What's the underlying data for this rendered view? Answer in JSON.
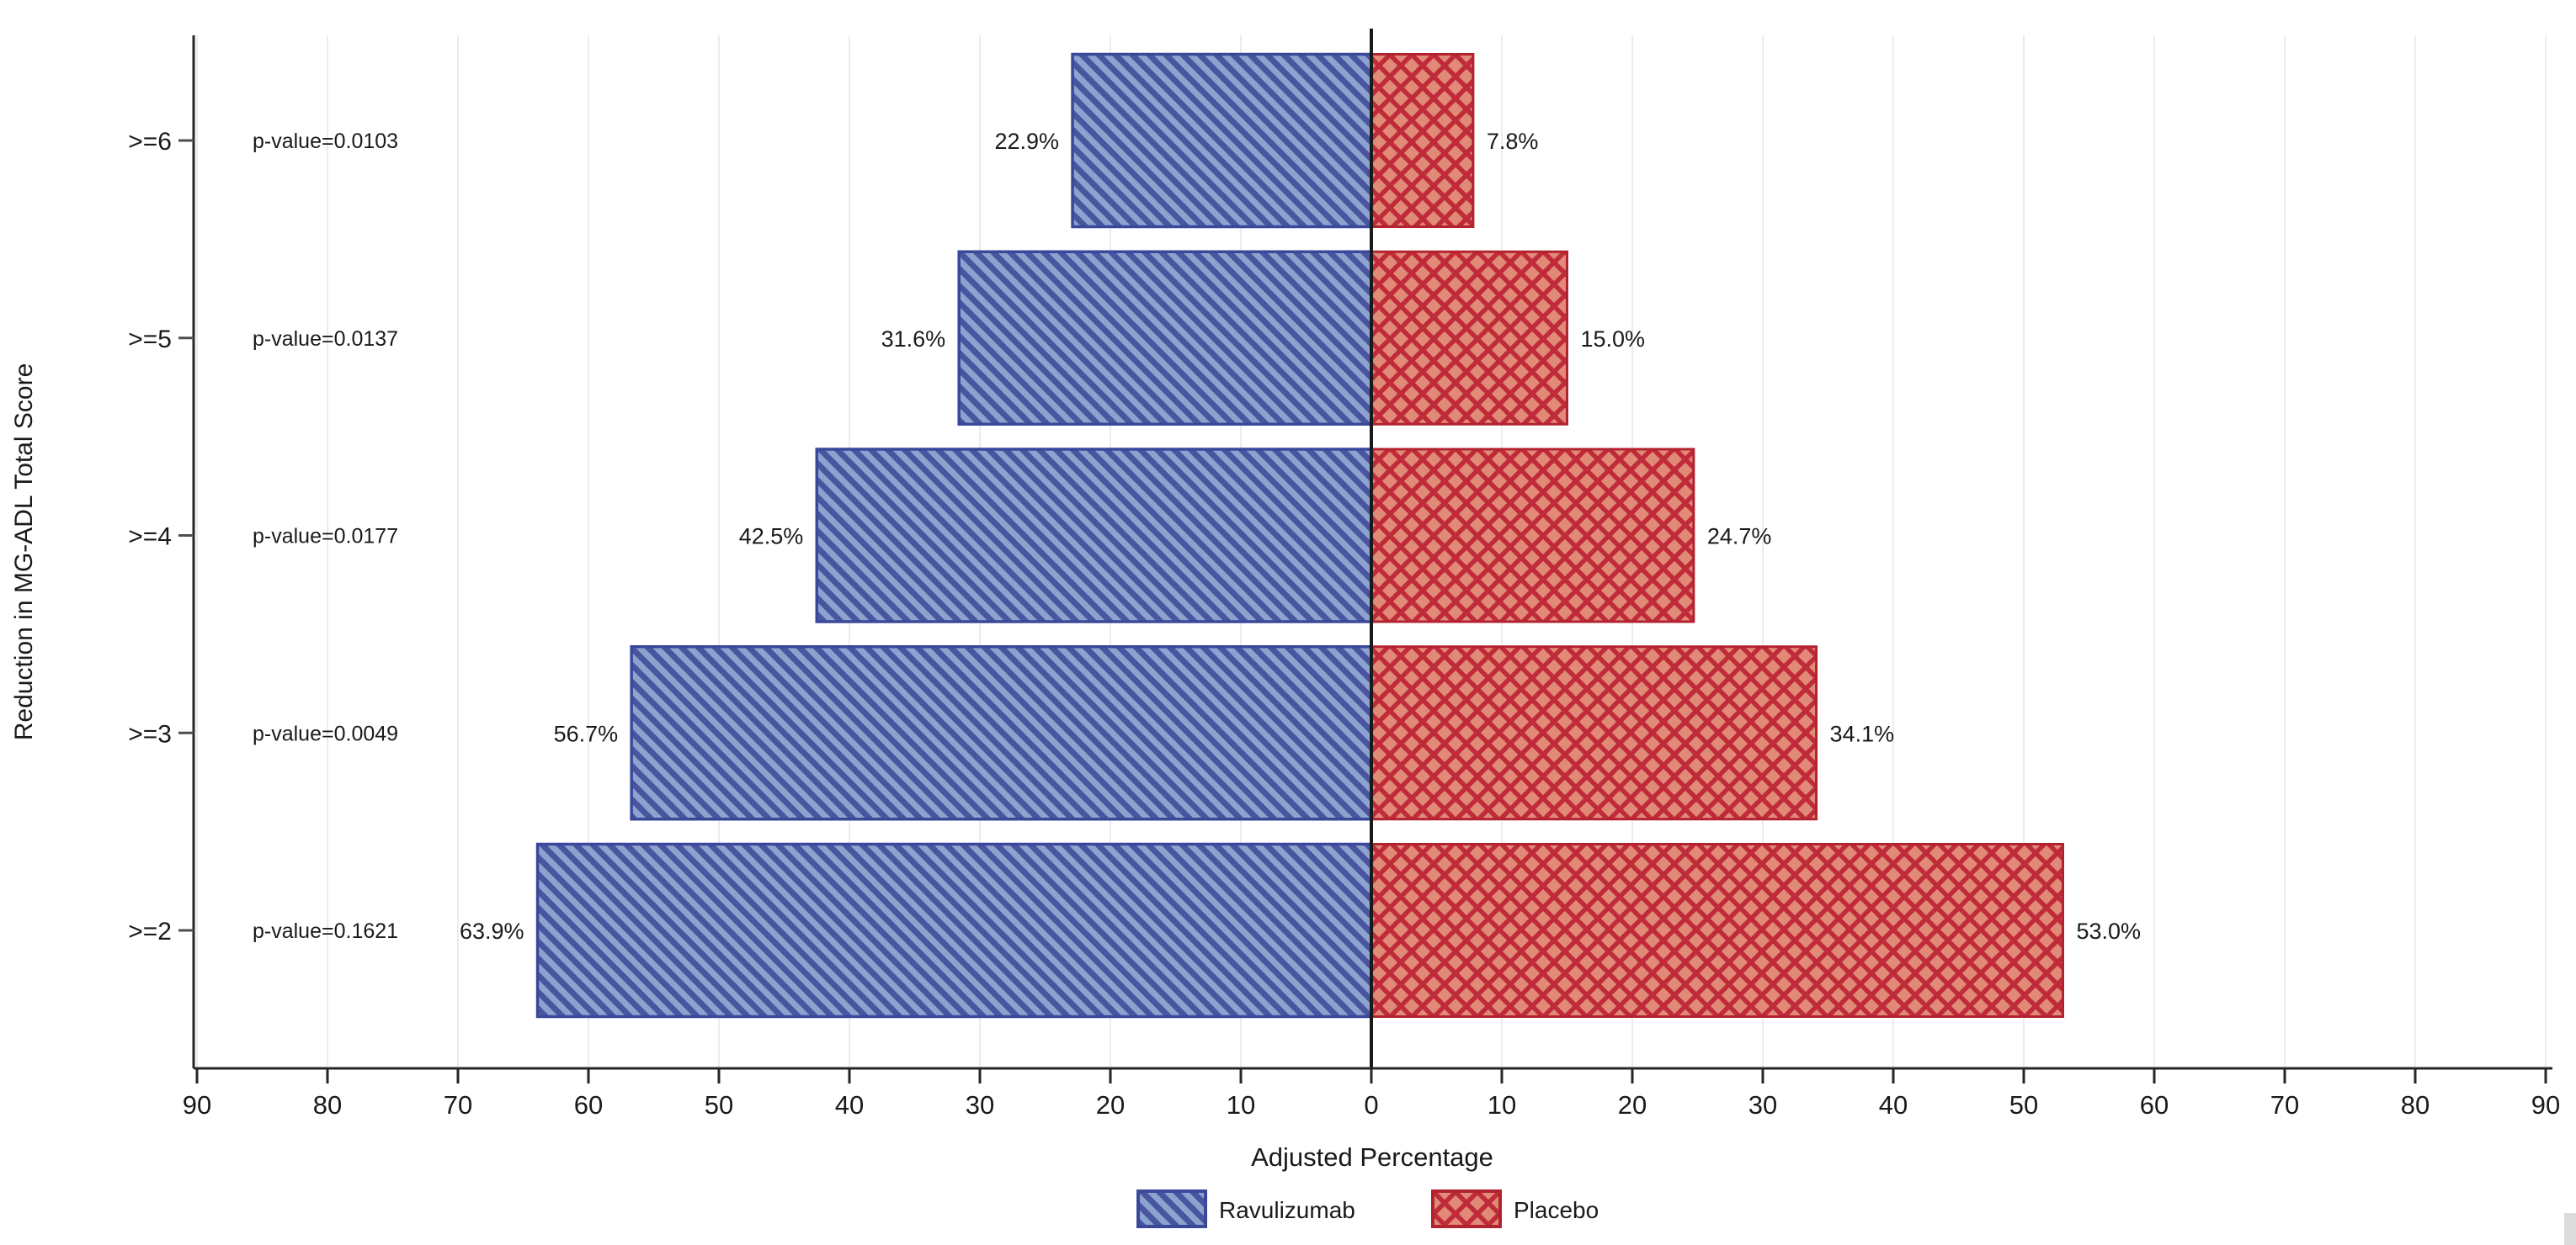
{
  "chart_data": {
    "type": "bar",
    "variant": "diverging_butterfly_horizontal",
    "title": "",
    "xlabel": "Adjusted Percentage",
    "ylabel": "Reduction in MG-ADL Total Score",
    "xlim": [
      -90,
      90
    ],
    "xtick_step": 10,
    "xtick_values": [
      -90,
      -80,
      -70,
      -60,
      -50,
      -40,
      -30,
      -20,
      -10,
      0,
      10,
      20,
      30,
      40,
      50,
      60,
      70,
      80,
      90
    ],
    "xtick_labels": [
      "90",
      "80",
      "70",
      "60",
      "50",
      "40",
      "30",
      "20",
      "10",
      "0",
      "10",
      "20",
      "30",
      "40",
      "50",
      "60",
      "70",
      "80",
      "90"
    ],
    "grid": true,
    "categories": [
      ">=6",
      ">=5",
      ">=4",
      ">=3",
      ">=2"
    ],
    "rows": [
      {
        "category": ">=6",
        "p_label": "p-value=0.0103",
        "ravulizumab": 22.9,
        "ravulizumab_label": "22.9%",
        "placebo": 7.8,
        "placebo_label": "7.8%"
      },
      {
        "category": ">=5",
        "p_label": "p-value=0.0137",
        "ravulizumab": 31.6,
        "ravulizumab_label": "31.6%",
        "placebo": 15.0,
        "placebo_label": "15.0%"
      },
      {
        "category": ">=4",
        "p_label": "p-value=0.0177",
        "ravulizumab": 42.5,
        "ravulizumab_label": "42.5%",
        "placebo": 24.7,
        "placebo_label": "24.7%"
      },
      {
        "category": ">=3",
        "p_label": "p-value=0.0049",
        "ravulizumab": 56.7,
        "ravulizumab_label": "56.7%",
        "placebo": 34.1,
        "placebo_label": "34.1%"
      },
      {
        "category": ">=2",
        "p_label": "p-value=0.1621",
        "ravulizumab": 63.9,
        "ravulizumab_label": "63.9%",
        "placebo": 53.0,
        "placebo_label": "53.0%"
      }
    ],
    "series": [
      {
        "name": "Ravulizumab",
        "side": "left",
        "hatch": "diagonal-backslash",
        "fill": "#8da3cf",
        "hatch_color": "#4a55a0",
        "border_color": "#3a489a"
      },
      {
        "name": "Placebo",
        "side": "right",
        "hatch": "crosshatch-diamond",
        "fill": "#e18a77",
        "hatch_color": "#c02b3a",
        "border_color": "#b2222f"
      }
    ],
    "legend": [
      {
        "label": "Ravulizumab"
      },
      {
        "label": "Placebo"
      }
    ],
    "legend_position": "bottom-center",
    "colors": {
      "zero_line": "#1a1a1a",
      "axis": "#262626",
      "gridline": "#ececec",
      "category_tick": "#4d4d4d",
      "text": "#1a1a1a",
      "background": "#ffffff"
    }
  }
}
